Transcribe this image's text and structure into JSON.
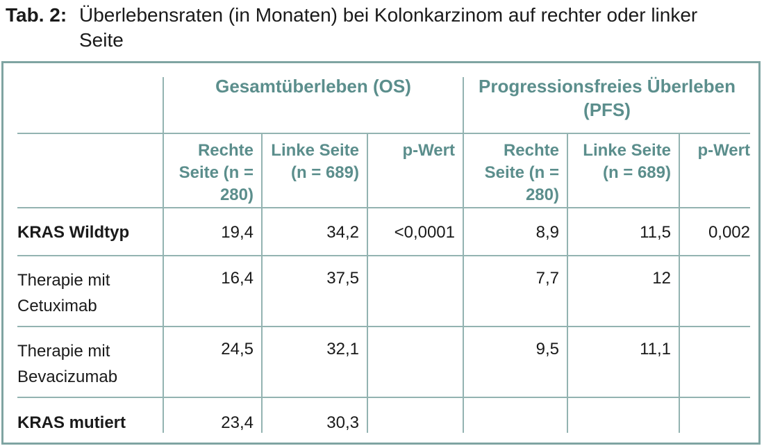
{
  "caption": {
    "label": "Tab. 2:",
    "text": "Überlebensraten (in Monaten) bei Kolonkarzinom auf rechter oder linker Seite"
  },
  "groups": {
    "os": "Gesamtüberleben (OS)",
    "pfs": "Progressionsfreies Überleben (PFS)"
  },
  "columns": {
    "os_right": "Rechte Seite (n = 280)",
    "os_left": "Linke Seite (n = 689)",
    "os_p": "p-Wert",
    "pfs_right": "Rechte Seite (n = 280)",
    "pfs_left": "Linke Seite (n = 689)",
    "pfs_p": "p-Wert"
  },
  "rows": [
    {
      "label": "KRAS Wildtyp",
      "os_right": "19,4",
      "os_left": "34,2",
      "os_p": "<0,0001",
      "pfs_right": "8,9",
      "pfs_left": "11,5",
      "pfs_p": "0,002"
    },
    {
      "label": "Therapie mit Cetuximab",
      "os_right": "16,4",
      "os_left": "37,5",
      "os_p": "",
      "pfs_right": "7,7",
      "pfs_left": "12",
      "pfs_p": ""
    },
    {
      "label": "Therapie mit Bevacizumab",
      "os_right": "24,5",
      "os_left": "32,1",
      "os_p": "",
      "pfs_right": "9,5",
      "pfs_left": "11,1",
      "pfs_p": ""
    },
    {
      "label": "KRAS mutiert",
      "os_right": "23,4",
      "os_left": "30,3",
      "os_p": "",
      "pfs_right": "",
      "pfs_left": "",
      "pfs_p": ""
    }
  ]
}
